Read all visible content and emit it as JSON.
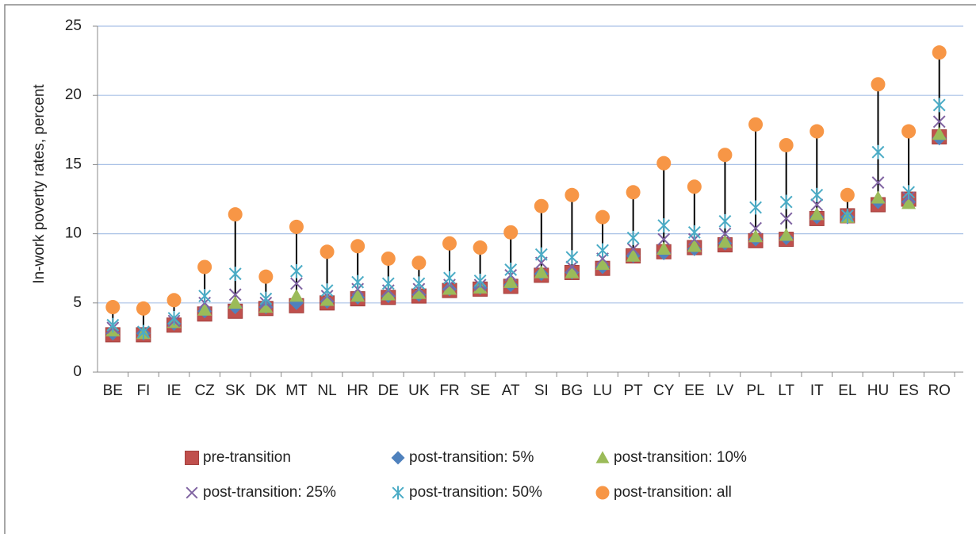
{
  "chart_data": {
    "type": "dot",
    "y_label": "In-work poverty rates, percent",
    "categories": [
      "BE",
      "FI",
      "IE",
      "CZ",
      "SK",
      "DK",
      "MT",
      "NL",
      "HR",
      "DE",
      "UK",
      "FR",
      "SE",
      "AT",
      "SI",
      "BG",
      "LU",
      "PT",
      "CY",
      "EE",
      "LV",
      "PL",
      "LT",
      "IT",
      "EL",
      "HU",
      "ES",
      "RO"
    ],
    "series": [
      {
        "name": "pre-transition",
        "color": "#c0504d",
        "marker": "square",
        "values": [
          2.7,
          2.7,
          3.4,
          4.2,
          4.4,
          4.6,
          4.8,
          5.0,
          5.3,
          5.4,
          5.5,
          5.9,
          6.0,
          6.2,
          7.0,
          7.2,
          7.5,
          8.4,
          8.7,
          9.0,
          9.2,
          9.5,
          9.6,
          11.1,
          11.3,
          12.1,
          12.5,
          17.0
        ]
      },
      {
        "name": "post-transition: 5%",
        "color": "#4f81bd",
        "marker": "diamond",
        "values": [
          2.8,
          2.8,
          3.5,
          4.4,
          4.7,
          4.7,
          5.0,
          5.1,
          5.4,
          5.5,
          5.6,
          6.0,
          6.1,
          6.3,
          7.1,
          7.2,
          7.6,
          8.4,
          8.6,
          8.9,
          9.3,
          9.6,
          9.7,
          11.2,
          11.2,
          12.3,
          12.3,
          16.9
        ]
      },
      {
        "name": "post-transition: 10%",
        "color": "#9bbb59",
        "marker": "triangle",
        "values": [
          3.0,
          2.8,
          3.6,
          4.5,
          5.0,
          4.7,
          5.5,
          5.2,
          5.5,
          5.6,
          5.7,
          6.0,
          6.1,
          6.5,
          7.2,
          7.2,
          7.8,
          8.4,
          8.9,
          9.1,
          9.4,
          9.8,
          9.9,
          11.4,
          11.2,
          12.6,
          12.2,
          17.2
        ]
      },
      {
        "name": "post-transition: 25%",
        "color": "#8064a2",
        "marker": "x",
        "values": [
          3.2,
          2.9,
          3.7,
          5.0,
          5.6,
          5.0,
          6.4,
          5.5,
          6.0,
          5.9,
          6.0,
          6.3,
          6.3,
          7.0,
          7.9,
          7.6,
          8.2,
          8.9,
          9.6,
          9.6,
          10.0,
          10.4,
          11.1,
          12.1,
          11.3,
          13.7,
          12.6,
          18.1
        ]
      },
      {
        "name": "post-transition: 50%",
        "color": "#4bacc6",
        "marker": "star",
        "values": [
          3.4,
          2.9,
          3.9,
          5.5,
          7.1,
          5.3,
          7.3,
          5.9,
          6.5,
          6.4,
          6.4,
          6.8,
          6.6,
          7.4,
          8.5,
          8.3,
          8.8,
          9.7,
          10.6,
          10.1,
          10.9,
          11.9,
          12.3,
          12.8,
          11.3,
          15.9,
          13.0,
          19.3
        ]
      },
      {
        "name": "post-transition: all",
        "color": "#f79646",
        "marker": "circle",
        "values": [
          4.7,
          4.6,
          5.2,
          7.6,
          11.4,
          6.9,
          10.5,
          8.7,
          9.1,
          8.2,
          7.9,
          9.3,
          9.0,
          10.1,
          12.0,
          12.8,
          11.2,
          13.0,
          15.1,
          13.4,
          15.7,
          17.9,
          16.4,
          17.4,
          12.8,
          20.8,
          17.4,
          23.1
        ]
      }
    ],
    "ylim": [
      0,
      25
    ],
    "yticks": [
      0,
      5,
      10,
      15,
      20,
      25
    ],
    "grid": true
  }
}
